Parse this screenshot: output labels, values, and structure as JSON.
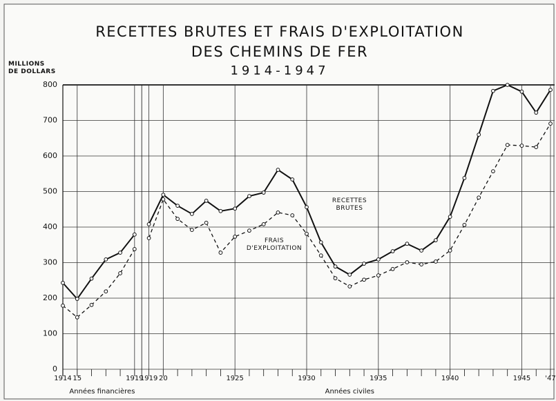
{
  "chart_data": {
    "type": "line",
    "title": "RECETTES BRUTES ET FRAIS D'EXPLOITATION",
    "subtitle": "DES CHEMINS DE FER",
    "period": "1914-1947",
    "y_label": "MILLIONS DE DOLLARS",
    "categories": [
      "1914",
      "15",
      null,
      null,
      null,
      "1919",
      "1919",
      "20",
      null,
      null,
      null,
      null,
      "1925",
      null,
      null,
      null,
      null,
      "1930",
      null,
      null,
      null,
      null,
      "1935",
      null,
      null,
      null,
      null,
      "1940",
      null,
      null,
      null,
      null,
      "1945",
      null,
      "'47"
    ],
    "annotations": [
      "Années financières",
      "Années civiles"
    ],
    "series": [
      {
        "name": "RECETTES BRUTES",
        "color": "#111111",
        "style": "solid",
        "values": [
          243,
          198,
          255,
          309,
          328,
          379,
          408,
          491,
          460,
          437,
          474,
          445,
          452,
          487,
          497,
          561,
          534,
          456,
          357,
          289,
          266,
          297,
          309,
          332,
          353,
          334,
          363,
          429,
          538,
          660,
          783,
          800,
          781,
          722,
          786
        ]
      },
      {
        "name": "FRAIS D'EXPLOITATION",
        "color": "#111111",
        "style": "dashed",
        "values": [
          179,
          146,
          181,
          219,
          270,
          338,
          369,
          478,
          423,
          392,
          412,
          328,
          373,
          390,
          408,
          441,
          433,
          381,
          320,
          256,
          233,
          252,
          264,
          282,
          301,
          295,
          303,
          334,
          406,
          483,
          557,
          631,
          629,
          625,
          691
        ]
      }
    ],
    "ylim": [
      0,
      800
    ],
    "yticks": [
      0,
      100,
      200,
      300,
      400,
      500,
      600,
      700,
      800
    ],
    "grid": true
  }
}
